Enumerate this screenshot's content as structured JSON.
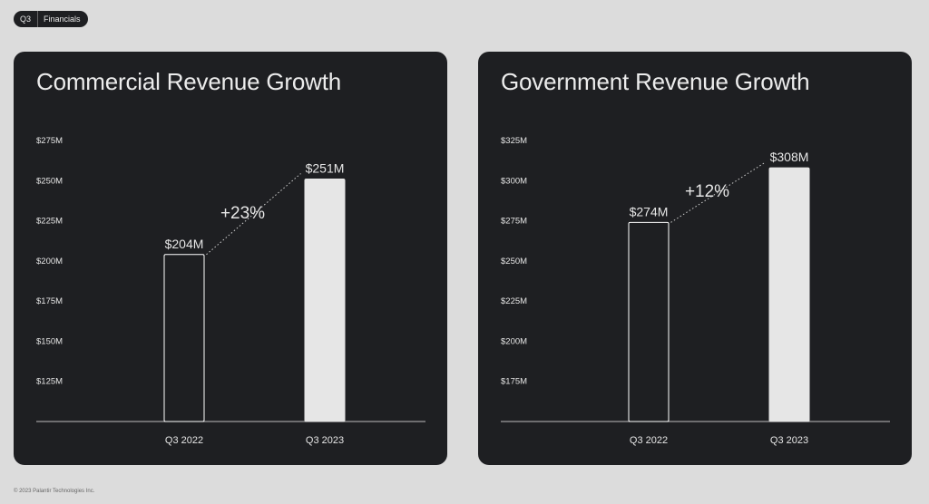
{
  "header": {
    "tag": "Q3",
    "section": "Financials"
  },
  "footer": {
    "copyright": "© 2023 Palantir Technologies Inc."
  },
  "colors": {
    "panel_bg": "#1e1f22",
    "bar_fill": "#e6e6e6",
    "bar_outline": "#ffffff",
    "text": "#e6e6e6"
  },
  "chart_data": [
    {
      "type": "bar",
      "title": "Commercial Revenue Growth",
      "categories": [
        "Q3 2022",
        "Q3 2023"
      ],
      "values": [
        204,
        251
      ],
      "value_labels": [
        "$204M",
        "$251M"
      ],
      "growth_label": "+23%",
      "yticks": [
        "$125M",
        "$150M",
        "$175M",
        "$200M",
        "$225M",
        "$250M",
        "$275M"
      ],
      "ylim": [
        100,
        275
      ],
      "xlabel": "",
      "ylabel": "",
      "grid": false
    },
    {
      "type": "bar",
      "title": "Government Revenue Growth",
      "categories": [
        "Q3 2022",
        "Q3 2023"
      ],
      "values": [
        274,
        308
      ],
      "value_labels": [
        "$274M",
        "$308M"
      ],
      "growth_label": "+12%",
      "yticks": [
        "$175M",
        "$200M",
        "$225M",
        "$250M",
        "$275M",
        "$300M",
        "$325M"
      ],
      "ylim": [
        150,
        325
      ],
      "xlabel": "",
      "ylabel": "",
      "grid": false
    }
  ]
}
